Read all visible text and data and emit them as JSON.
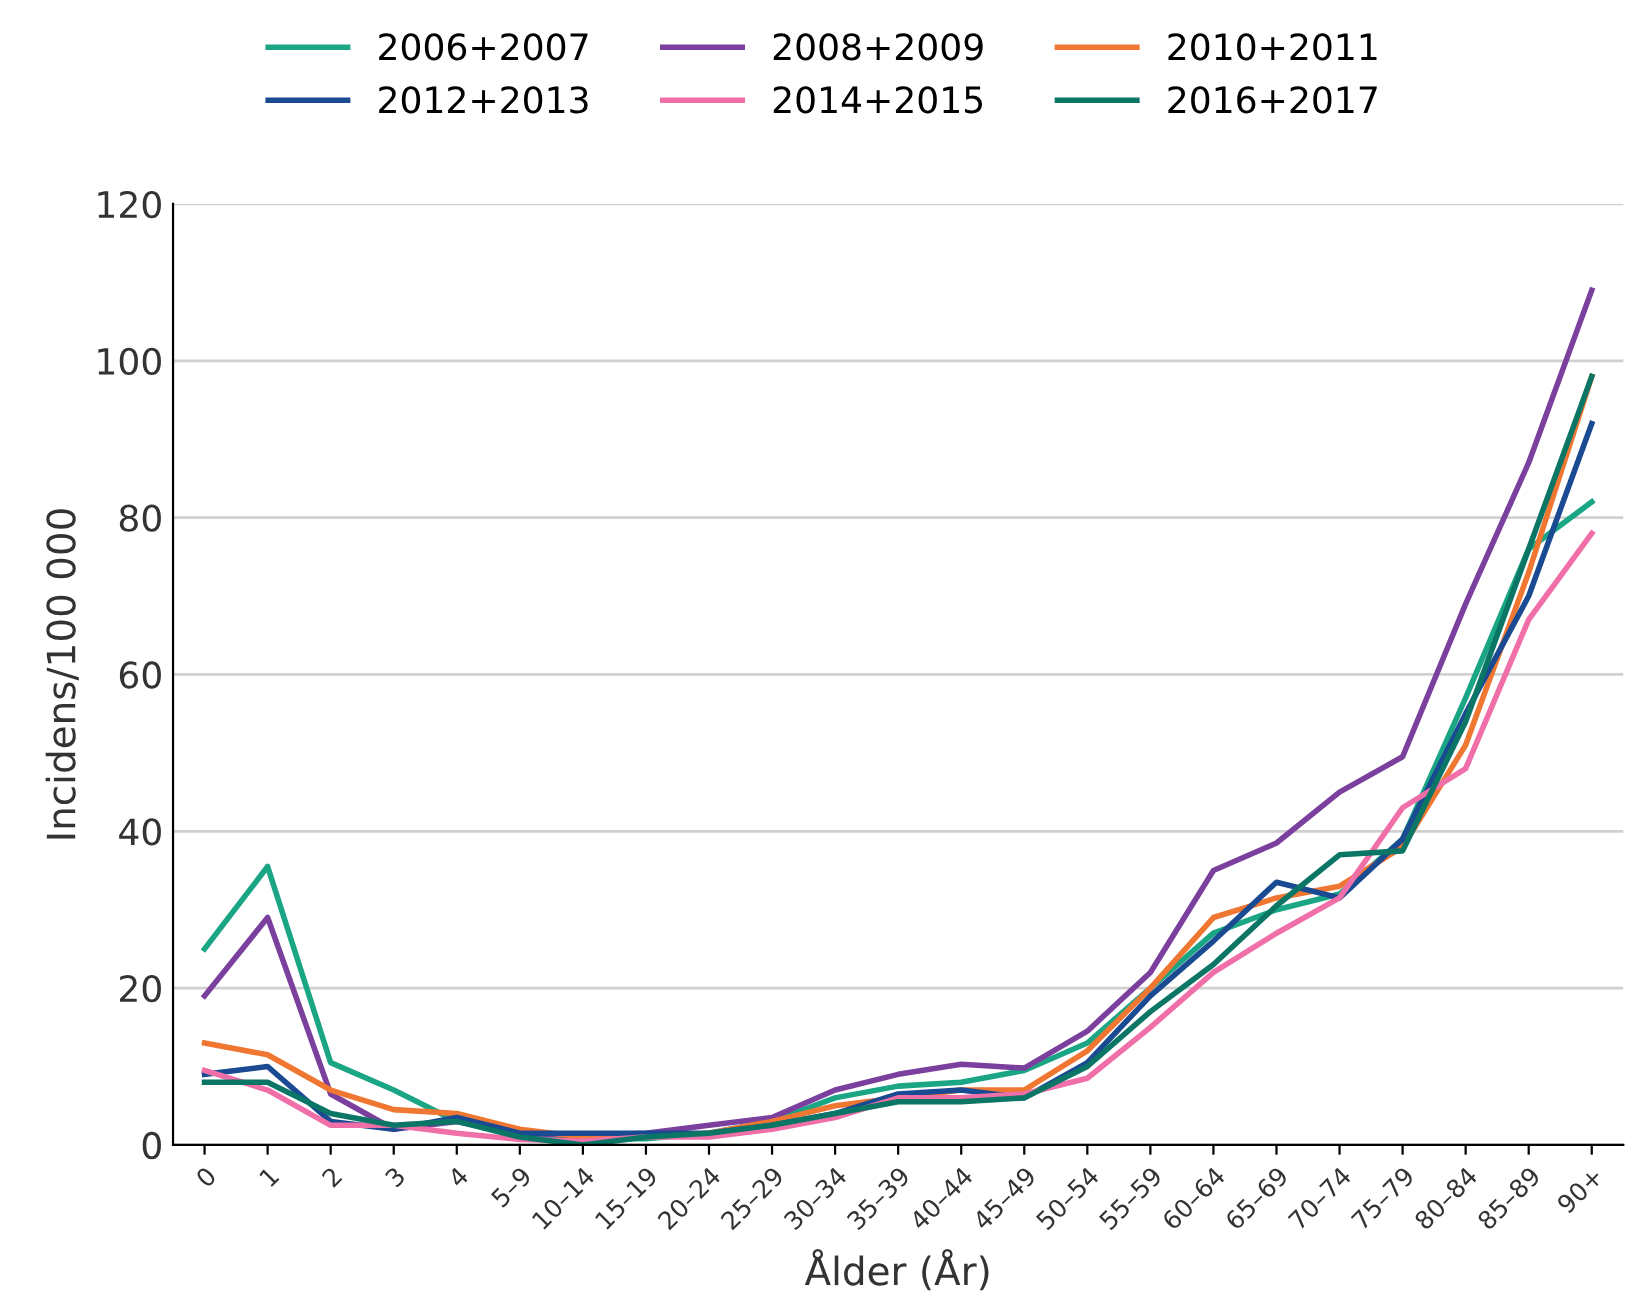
{
  "chart_data": {
    "type": "line",
    "xlabel": "Ålder (År)",
    "ylabel": "Incidens/100 000",
    "categories": [
      "0",
      "1",
      "2",
      "3",
      "4",
      "5–9",
      "10–14",
      "15–19",
      "20–24",
      "25–29",
      "30–34",
      "35–39",
      "40–44",
      "45–49",
      "50–54",
      "55–59",
      "60–64",
      "65–69",
      "70–74",
      "75–79",
      "80–84",
      "85–89",
      "90+"
    ],
    "series": [
      {
        "name": "2006+2007",
        "color": "#1aa584",
        "values": [
          25,
          35.5,
          10.5,
          7,
          3,
          1.5,
          0.8,
          0.8,
          1.5,
          3,
          6,
          7.5,
          8,
          9.5,
          13,
          20,
          27,
          30,
          32,
          39,
          57,
          76,
          82
        ]
      },
      {
        "name": "2008+2009",
        "color": "#7b3f9e",
        "values": [
          19,
          29,
          6.5,
          2,
          3,
          1.5,
          1.2,
          1.5,
          2.5,
          3.5,
          7,
          9,
          10.3,
          9.8,
          14.5,
          22,
          35,
          38.5,
          45,
          49.5,
          69,
          87,
          109
        ]
      },
      {
        "name": "2010+2011",
        "color": "#f07732",
        "values": [
          13,
          11.5,
          7,
          4.5,
          4,
          2,
          1,
          1,
          1.5,
          3,
          5,
          6,
          7,
          7,
          12,
          20,
          29,
          31.5,
          33,
          38,
          51,
          73,
          98
        ]
      },
      {
        "name": "2012+2013",
        "color": "#1a4a91",
        "values": [
          9,
          10,
          3,
          2,
          3.5,
          1.5,
          1.5,
          1.5,
          1.5,
          2.5,
          4,
          6.5,
          7,
          6,
          10.5,
          19,
          26,
          33.5,
          31.5,
          39,
          55,
          70,
          92
        ]
      },
      {
        "name": "2014+2015",
        "color": "#f06fa8",
        "values": [
          9.5,
          7,
          2.5,
          2.5,
          1.5,
          0.7,
          0.5,
          1,
          1,
          2,
          3.5,
          6,
          6,
          6.5,
          8.5,
          15,
          22,
          27,
          31.5,
          43,
          48,
          67,
          78
        ]
      },
      {
        "name": "2016+2017",
        "color": "#0b7566",
        "values": [
          8,
          8,
          4,
          2.5,
          3,
          1,
          0,
          1,
          1.5,
          2.5,
          4,
          5.5,
          5.5,
          6,
          10,
          17,
          23,
          30.5,
          37,
          37.5,
          54,
          76,
          98
        ]
      }
    ],
    "ylim": [
      0,
      120
    ],
    "yticks": [
      0,
      20,
      40,
      60,
      80,
      100,
      120
    ],
    "grid": "y",
    "legend": "top",
    "marker": "none",
    "line_style": "solid"
  }
}
